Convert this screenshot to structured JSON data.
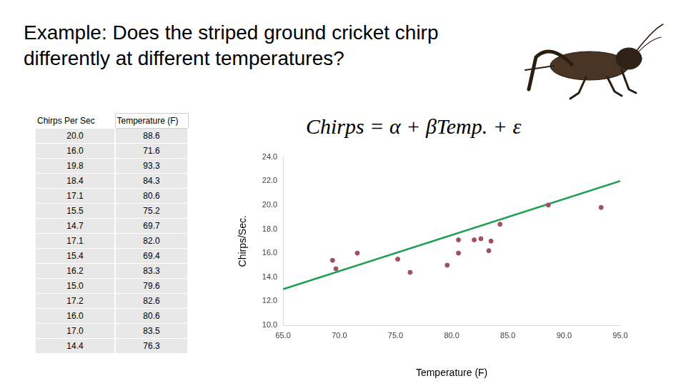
{
  "title": "Example:  Does the striped ground cricket chirp differently at different temperatures?",
  "equation": "Chirps = α + βTemp. + ε",
  "table": {
    "header": [
      "Chirps Per Sec",
      "Temperature (F)"
    ],
    "rows": [
      [
        "20.0",
        "88.6"
      ],
      [
        "16.0",
        "71.6"
      ],
      [
        "19.8",
        "93.3"
      ],
      [
        "18.4",
        "84.3"
      ],
      [
        "17.1",
        "80.6"
      ],
      [
        "15.5",
        "75.2"
      ],
      [
        "14.7",
        "69.7"
      ],
      [
        "17.1",
        "82.0"
      ],
      [
        "15.4",
        "69.4"
      ],
      [
        "16.2",
        "83.3"
      ],
      [
        "15.0",
        "79.6"
      ],
      [
        "17.2",
        "82.6"
      ],
      [
        "16.0",
        "80.6"
      ],
      [
        "17.0",
        "83.5"
      ],
      [
        "14.4",
        "76.3"
      ]
    ]
  },
  "chart_data": {
    "type": "scatter",
    "x_label": "Temperature (F)",
    "y_label": "Chirps/Sec.",
    "x": [
      88.6,
      71.6,
      93.3,
      84.3,
      80.6,
      75.2,
      69.7,
      82.0,
      69.4,
      83.3,
      79.6,
      82.6,
      80.6,
      83.5,
      76.3
    ],
    "values": [
      20.0,
      16.0,
      19.8,
      18.4,
      17.1,
      15.5,
      14.7,
      17.1,
      15.4,
      16.2,
      15.0,
      17.2,
      16.0,
      17.0,
      14.4
    ],
    "color": "#a0505f",
    "marker": "circle",
    "trend_line": {
      "x": [
        65,
        95
      ],
      "values": [
        13.0,
        22.0
      ],
      "color": "#1e9e50",
      "line_style": "solid"
    },
    "xlim": [
      65,
      95
    ],
    "xticks": [
      {
        "value": 65,
        "label": "65.0"
      },
      {
        "value": 70,
        "label": "70.0"
      },
      {
        "value": 75,
        "label": "75.0"
      },
      {
        "value": 80,
        "label": "80.0"
      },
      {
        "value": 85,
        "label": "85.0"
      },
      {
        "value": 90,
        "label": "90.0"
      },
      {
        "value": 95,
        "label": "95.0"
      }
    ],
    "ylim": [
      10,
      24
    ],
    "yticks": [
      {
        "value": 10,
        "label": "10.0"
      },
      {
        "value": 12,
        "label": "12.0"
      },
      {
        "value": 14,
        "label": "14.0"
      },
      {
        "value": 16,
        "label": "16.0"
      },
      {
        "value": 18,
        "label": "18.0"
      },
      {
        "value": 20,
        "label": "20.0"
      },
      {
        "value": 22,
        "label": "22.0"
      },
      {
        "value": 24,
        "label": "24.0"
      }
    ],
    "grid": false
  }
}
